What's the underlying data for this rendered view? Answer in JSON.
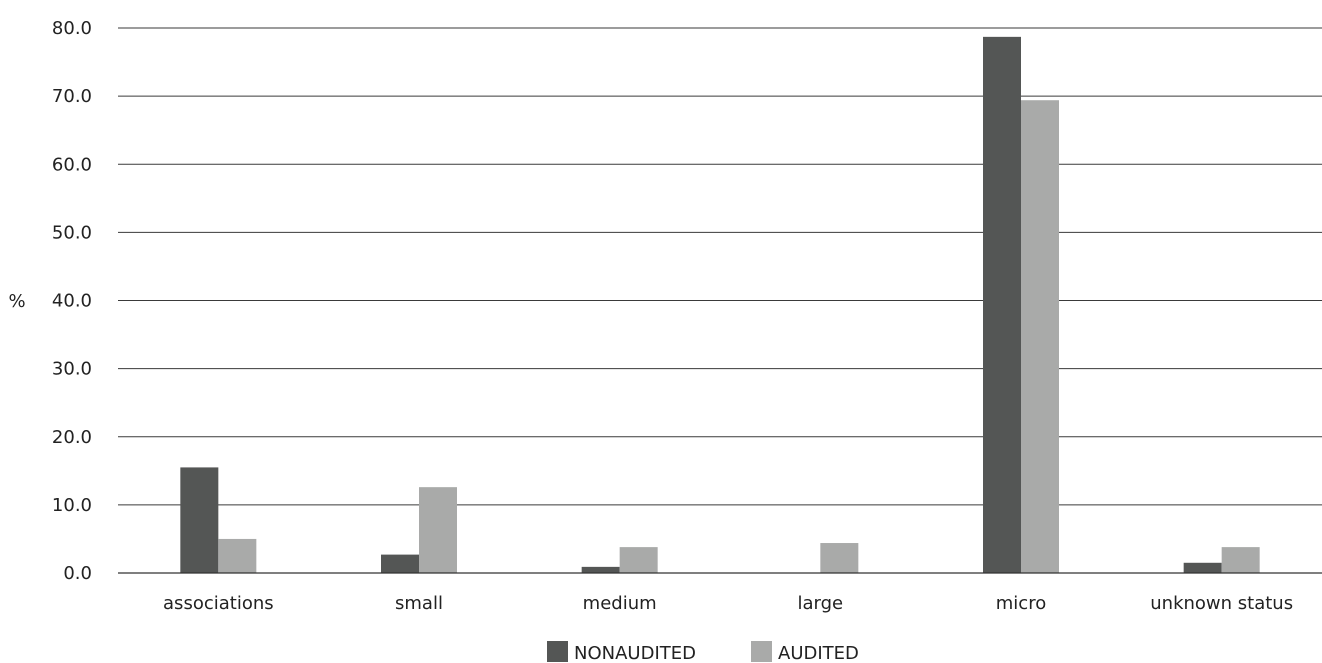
{
  "chart_data": {
    "type": "bar",
    "ylabel": "%",
    "xlabel": "",
    "ylim": [
      0,
      80
    ],
    "yticks": [
      "0.0",
      "10.0",
      "20.0",
      "30.0",
      "40.0",
      "50.0",
      "60.0",
      "70.0",
      "80.0"
    ],
    "grid": true,
    "legend_position": "bottom",
    "categories": [
      "associations",
      "small",
      "medium",
      "large",
      "micro",
      "unknown status"
    ],
    "series": [
      {
        "name": "NONAUDITED",
        "color": "#545655",
        "values": [
          15.5,
          2.7,
          0.9,
          0.0,
          78.7,
          1.5
        ]
      },
      {
        "name": "AUDITED",
        "color": "#a9aaa9",
        "values": [
          5.0,
          12.6,
          3.8,
          4.4,
          69.4,
          3.8
        ]
      }
    ]
  }
}
